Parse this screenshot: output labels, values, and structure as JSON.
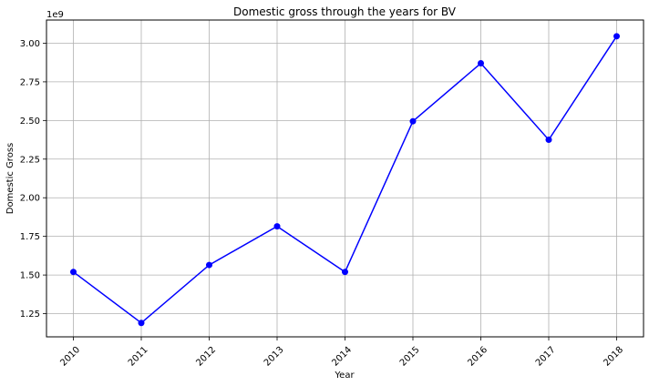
{
  "chart_data": {
    "type": "line",
    "title": "Domestic gross through the years for BV",
    "xlabel": "Year",
    "ylabel": "Domestic Gross",
    "y_scale_label": "1e9",
    "x": [
      "2010",
      "2011",
      "2012",
      "2013",
      "2014",
      "2015",
      "2016",
      "2017",
      "2018"
    ],
    "series": [
      {
        "values": [
          1.52,
          1.19,
          1.565,
          1.815,
          1.52,
          2.495,
          2.87,
          2.375,
          3.045
        ],
        "color": "#0000ff",
        "marker": "circle"
      }
    ],
    "yticks": [
      "1.25",
      "1.50",
      "1.75",
      "2.00",
      "2.25",
      "2.50",
      "2.75",
      "3.00"
    ],
    "ylim": [
      1.1,
      3.15
    ],
    "grid": true,
    "x_tick_rotation": "45 degrees"
  }
}
